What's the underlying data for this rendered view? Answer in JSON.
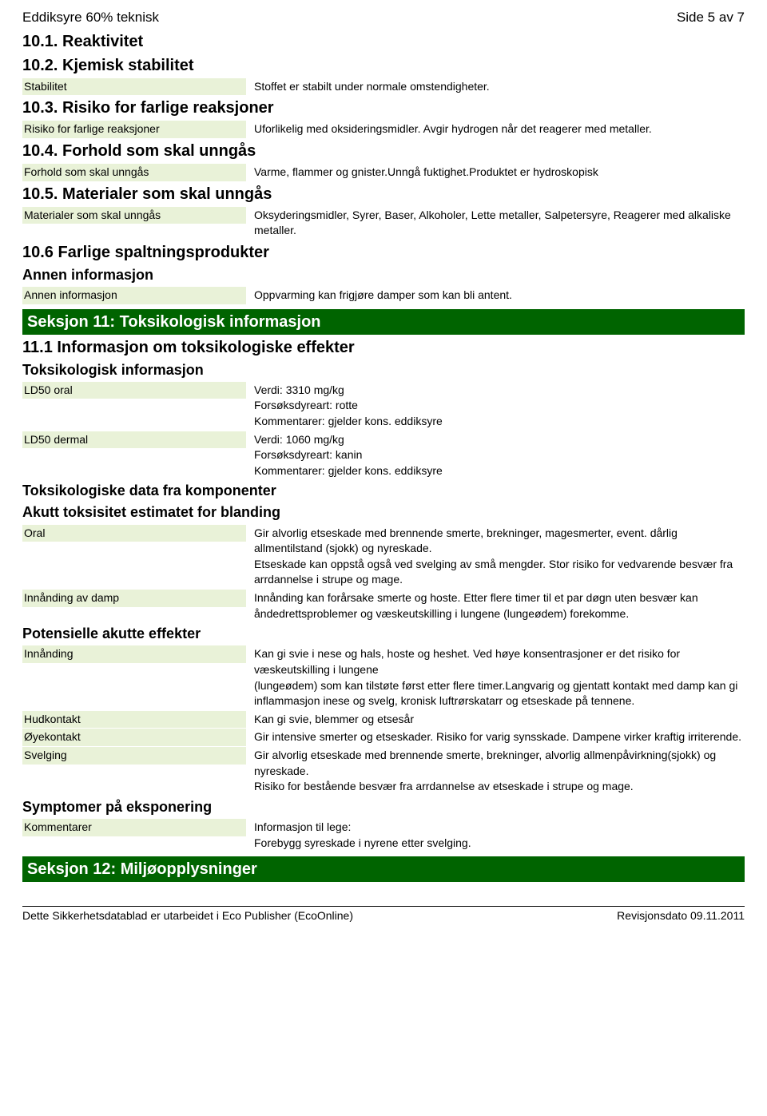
{
  "header": {
    "product_name": "Eddiksyre 60% teknisk",
    "page_info": "Side 5 av 7"
  },
  "sections": {
    "s10_1": {
      "title": "10.1. Reaktivitet"
    },
    "s10_2": {
      "title": "10.2. Kjemisk stabilitet",
      "rows": {
        "stabilitet": {
          "label": "Stabilitet",
          "value": "Stoffet er stabilt under normale omstendigheter."
        }
      }
    },
    "s10_3": {
      "title": "10.3. Risiko for farlige reaksjoner",
      "rows": {
        "risiko": {
          "label": "Risiko for farlige reaksjoner",
          "value": "Uforlikelig med oksideringsmidler. Avgir hydrogen når det reagerer med metaller."
        }
      }
    },
    "s10_4": {
      "title": "10.4. Forhold som skal unngås",
      "rows": {
        "forhold": {
          "label": "Forhold som skal unngås",
          "value": "Varme, flammer og gnister.Unngå fuktighet.Produktet er hydroskopisk"
        }
      }
    },
    "s10_5": {
      "title": "10.5. Materialer som skal unngås",
      "rows": {
        "materialer": {
          "label": "Materialer som skal unngås",
          "value": "Oksyderingsmidler, Syrer, Baser, Alkoholer, Lette metaller, Salpetersyre, Reagerer med alkaliske metaller."
        }
      }
    },
    "s10_6": {
      "title": "10.6 Farlige spaltningsprodukter",
      "subtitle": "Annen informasjon",
      "rows": {
        "annen": {
          "label": "Annen informasjon",
          "value": "Oppvarming kan frigjøre damper som kan bli antent."
        }
      }
    },
    "s11": {
      "header": "Seksjon 11: Toksikologisk informasjon",
      "s11_1": {
        "title": "11.1 Informasjon om toksikologiske effekter",
        "sub_toks": "Toksikologisk informasjon",
        "ld50_oral": {
          "label": "LD50 oral",
          "l1": "Verdi: 3310 mg/kg",
          "l2": "Forsøksdyreart: rotte",
          "l3": "Kommentarer: gjelder kons. eddiksyre"
        },
        "ld50_dermal": {
          "label": "LD50 dermal",
          "l1": "Verdi: 1060 mg/kg",
          "l2": "Forsøksdyreart: kanin",
          "l3": "Kommentarer: gjelder kons. eddiksyre"
        },
        "sub_komp": "Toksikologiske data fra komponenter",
        "sub_akutt": "Akutt toksisitet estimatet for blanding",
        "oral": {
          "label": "Oral",
          "p1": "Gir alvorlig etseskade med brennende smerte, brekninger, magesmerter, event. dårlig allmentilstand (sjokk) og nyreskade.",
          "p2": "Etseskade kan oppstå også ved svelging av små mengder. Stor risiko for vedvarende besvær fra arrdannelse i strupe og mage."
        },
        "innanding_damp": {
          "label": "Innånding av damp",
          "value": "Innånding kan forårsake smerte og hoste. Etter flere timer til et par døgn uten besvær kan åndedrettsproblemer og væskeutskilling i lungene (lungeødem) forekomme."
        },
        "sub_pot": "Potensielle akutte effekter",
        "innanding": {
          "label": "Innånding",
          "p1": "Kan gi svie i nese og hals, hoste og heshet. Ved høye konsentrasjoner er det risiko for væskeutskilling i lungene",
          "p2": "(lungeødem) som kan tilstøte først etter flere timer.Langvarig og gjentatt kontakt med damp kan gi inflammasjon inese og svelg, kronisk luftrørskatarr og etseskade på tennene."
        },
        "hudkontakt": {
          "label": "Hudkontakt",
          "value": "Kan gi svie, blemmer og etsesår"
        },
        "oyekontakt": {
          "label": "Øyekontakt",
          "value": "Gir intensive smerter og etseskader. Risiko for varig synsskade. Dampene virker kraftig irriterende."
        },
        "svelging": {
          "label": "Svelging",
          "p1": "Gir alvorlig etseskade med brennende smerte, brekninger, alvorlig allmenpåvirkning(sjokk) og nyreskade.",
          "p2": "Risiko for bestående besvær fra arrdannelse av etseskade i strupe og mage."
        },
        "sub_symp": "Symptomer på eksponering",
        "kommentarer": {
          "label": "Kommentarer",
          "l1": "Informasjon til lege:",
          "l2": "Forebygg syreskade i nyrene etter svelging."
        }
      }
    },
    "s12": {
      "header": "Seksjon 12: Miljøopplysninger"
    }
  },
  "footer": {
    "left": "Dette Sikkerhetsdatablad er utarbeidet i Eco Publisher (EcoOnline)",
    "right": "Revisjonsdato 09.11.2011"
  },
  "colors": {
    "section_bg": "#006400",
    "section_fg": "#ffffff",
    "label_bg": "#e9f2d8",
    "text": "#000000"
  }
}
